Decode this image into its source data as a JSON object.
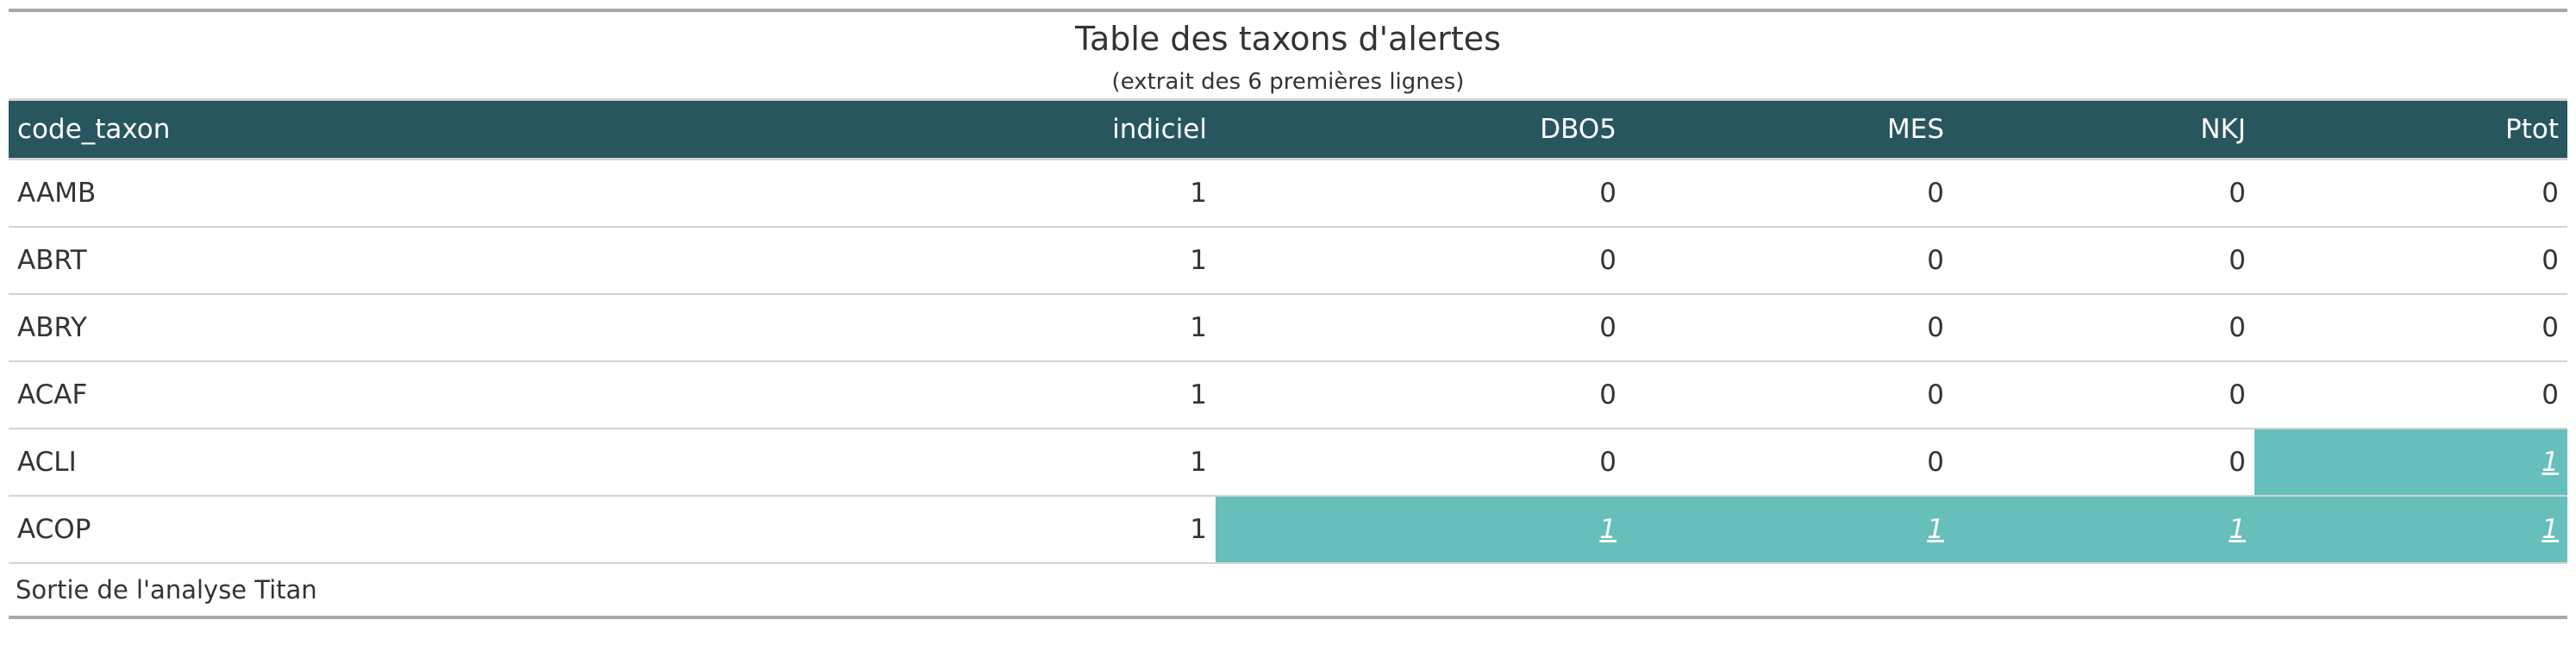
{
  "table": {
    "title": "Table des taxons d'alertes",
    "subtitle": "(extrait des 6 premières lignes)",
    "columns": [
      "code_taxon",
      "indiciel",
      "DBO5",
      "MES",
      "NKJ",
      "Ptot"
    ],
    "rows": [
      [
        "AAMB",
        "1",
        "0",
        "0",
        "0",
        "0"
      ],
      [
        "ABRT",
        "1",
        "0",
        "0",
        "0",
        "0"
      ],
      [
        "ABRY",
        "1",
        "0",
        "0",
        "0",
        "0"
      ],
      [
        "ACAF",
        "1",
        "0",
        "0",
        "0",
        "0"
      ],
      [
        "ACLI",
        "1",
        "0",
        "0",
        "0",
        "1"
      ],
      [
        "ACOP",
        "1",
        "1",
        "1",
        "1",
        "1"
      ]
    ],
    "source_note": "Sortie de l'analyse Titan",
    "highlight_color": "#67bfbc",
    "header_color": "#27565f"
  }
}
